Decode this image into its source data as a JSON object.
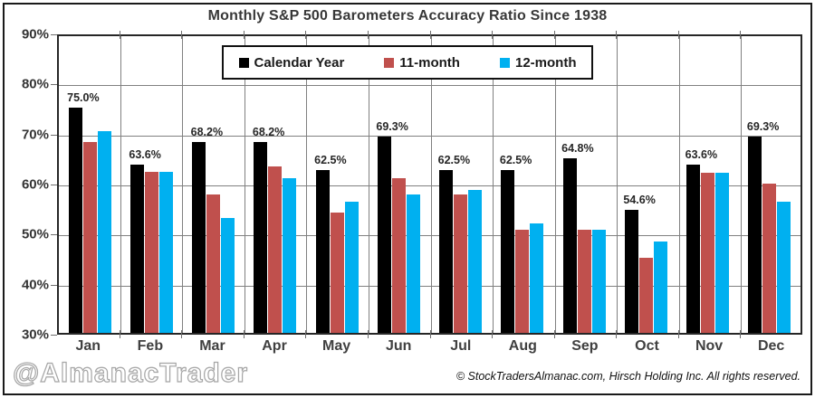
{
  "title": "Monthly S&P 500 Barometers Accuracy Ratio Since 1938",
  "watermark": "@AlmanacTrader",
  "footer": "© StockTradersAlmanac.com, Hirsch Holding Inc. All rights reserved.",
  "colors": {
    "calendar_year": "#000000",
    "eleven_month": "#C0504D",
    "twelve_month": "#00B0F0",
    "grid": "#808080",
    "axis_text": "#404040",
    "border": "#1a1a1a"
  },
  "chart_data": {
    "type": "bar",
    "title": "Monthly S&P 500 Barometers Accuracy Ratio Since 1938",
    "categories": [
      "Jan",
      "Feb",
      "Mar",
      "Apr",
      "May",
      "Jun",
      "Jul",
      "Aug",
      "Sep",
      "Oct",
      "Nov",
      "Dec"
    ],
    "series": [
      {
        "name": "Calendar Year",
        "color": "#000000",
        "values": [
          75.0,
          63.6,
          68.2,
          68.2,
          62.5,
          69.3,
          62.5,
          62.5,
          64.8,
          54.6,
          63.6,
          69.3
        ],
        "data_labels": [
          "75.0%",
          "63.6%",
          "68.2%",
          "68.2%",
          "62.5%",
          "69.3%",
          "62.5%",
          "62.5%",
          "64.8%",
          "54.6%",
          "63.6%",
          "69.3%"
        ]
      },
      {
        "name": "11-month",
        "color": "#C0504D",
        "values": [
          68.2,
          62.1,
          57.6,
          63.3,
          54.0,
          61.0,
          57.7,
          50.6,
          50.6,
          45.0,
          62.0,
          59.8
        ]
      },
      {
        "name": "12-month",
        "color": "#00B0F0",
        "values": [
          70.3,
          62.1,
          52.9,
          61.0,
          56.2,
          57.6,
          58.6,
          51.8,
          50.7,
          48.3,
          62.0,
          56.2
        ]
      }
    ],
    "ylim": [
      30,
      90
    ],
    "yticks": [
      90,
      80,
      70,
      60,
      50,
      40,
      30
    ],
    "ytick_labels": [
      "90%",
      "80%",
      "70%",
      "60%",
      "50%",
      "40%",
      "30%"
    ],
    "xlabel": "",
    "ylabel": "",
    "grid": true,
    "legend_position": "top-center"
  }
}
